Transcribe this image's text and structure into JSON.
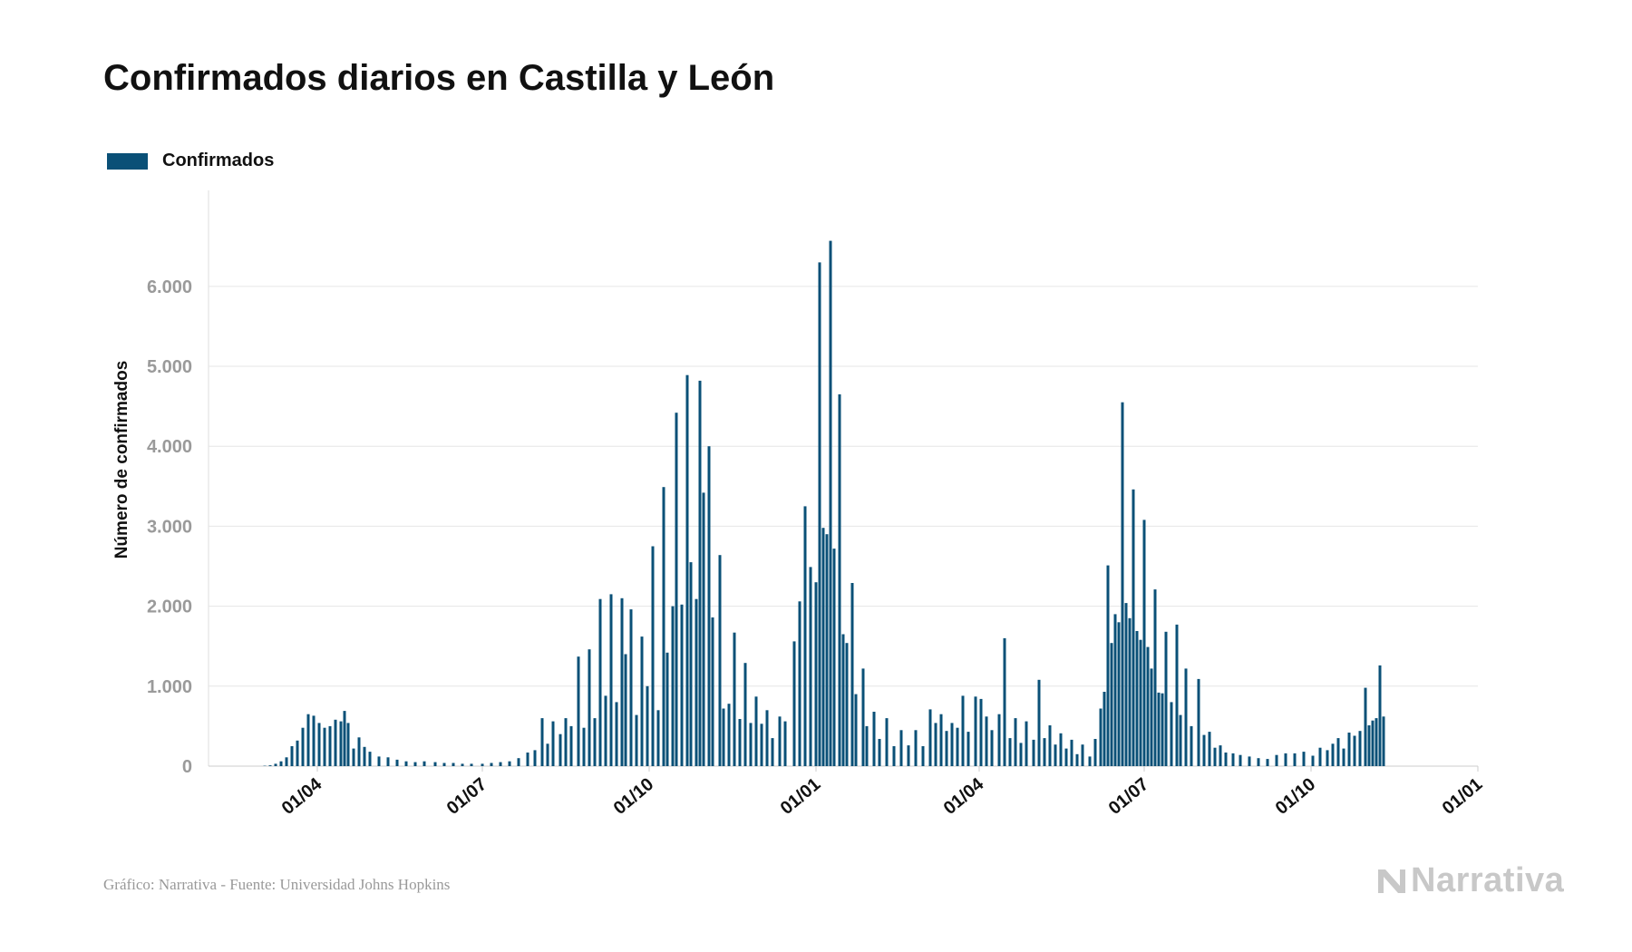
{
  "page": {
    "title": "Confirmados diarios en Castilla y León",
    "source": "Gráfico: Narrativa - Fuente: Universidad Johns Hopkins",
    "brand": "Narrativa"
  },
  "chart_data": {
    "type": "bar",
    "title": "Confirmados diarios en Castilla y León",
    "ylabel": "Número de confirmados",
    "xlabel": "",
    "ylim": [
      0,
      7200
    ],
    "grid": true,
    "legend": {
      "position": "top-left",
      "entries": [
        "Confirmados"
      ]
    },
    "color": "#0a5077",
    "y_ticks": [
      {
        "value": 0,
        "label": "0"
      },
      {
        "value": 1000,
        "label": "1.000"
      },
      {
        "value": 2000,
        "label": "2.000"
      },
      {
        "value": 3000,
        "label": "3.000"
      },
      {
        "value": 4000,
        "label": "4.000"
      },
      {
        "value": 5000,
        "label": "5.000"
      },
      {
        "value": 6000,
        "label": "6.000"
      }
    ],
    "x_range": [
      "2020-02-01",
      "2022-01-01"
    ],
    "x_ticks": [
      {
        "date": "2020-04-01",
        "label": "01/04"
      },
      {
        "date": "2020-07-01",
        "label": "01/07"
      },
      {
        "date": "2020-10-01",
        "label": "01/10"
      },
      {
        "date": "2021-01-01",
        "label": "01/01"
      },
      {
        "date": "2021-04-01",
        "label": "01/04"
      },
      {
        "date": "2021-07-01",
        "label": "01/07"
      },
      {
        "date": "2021-10-01",
        "label": "01/10"
      },
      {
        "date": "2022-01-01",
        "label": "01/01"
      }
    ],
    "series": [
      {
        "name": "Confirmados",
        "points": [
          [
            "2020-03-03",
            5
          ],
          [
            "2020-03-06",
            10
          ],
          [
            "2020-03-09",
            30
          ],
          [
            "2020-03-12",
            60
          ],
          [
            "2020-03-15",
            110
          ],
          [
            "2020-03-18",
            250
          ],
          [
            "2020-03-21",
            320
          ],
          [
            "2020-03-24",
            480
          ],
          [
            "2020-03-27",
            650
          ],
          [
            "2020-03-30",
            630
          ],
          [
            "2020-04-02",
            540
          ],
          [
            "2020-04-05",
            480
          ],
          [
            "2020-04-08",
            500
          ],
          [
            "2020-04-11",
            580
          ],
          [
            "2020-04-14",
            560
          ],
          [
            "2020-04-16",
            690
          ],
          [
            "2020-04-18",
            540
          ],
          [
            "2020-04-21",
            220
          ],
          [
            "2020-04-24",
            360
          ],
          [
            "2020-04-27",
            240
          ],
          [
            "2020-04-30",
            180
          ],
          [
            "2020-05-05",
            120
          ],
          [
            "2020-05-10",
            110
          ],
          [
            "2020-05-15",
            80
          ],
          [
            "2020-05-20",
            60
          ],
          [
            "2020-05-25",
            50
          ],
          [
            "2020-05-30",
            60
          ],
          [
            "2020-06-05",
            50
          ],
          [
            "2020-06-10",
            40
          ],
          [
            "2020-06-15",
            40
          ],
          [
            "2020-06-20",
            30
          ],
          [
            "2020-06-25",
            30
          ],
          [
            "2020-07-01",
            30
          ],
          [
            "2020-07-06",
            40
          ],
          [
            "2020-07-11",
            50
          ],
          [
            "2020-07-16",
            60
          ],
          [
            "2020-07-21",
            100
          ],
          [
            "2020-07-26",
            170
          ],
          [
            "2020-07-30",
            200
          ],
          [
            "2020-08-03",
            600
          ],
          [
            "2020-08-06",
            280
          ],
          [
            "2020-08-09",
            560
          ],
          [
            "2020-08-13",
            400
          ],
          [
            "2020-08-16",
            600
          ],
          [
            "2020-08-19",
            500
          ],
          [
            "2020-08-23",
            1370
          ],
          [
            "2020-08-26",
            480
          ],
          [
            "2020-08-29",
            1460
          ],
          [
            "2020-09-01",
            600
          ],
          [
            "2020-09-04",
            2090
          ],
          [
            "2020-09-07",
            880
          ],
          [
            "2020-09-10",
            2150
          ],
          [
            "2020-09-13",
            800
          ],
          [
            "2020-09-16",
            2100
          ],
          [
            "2020-09-18",
            1400
          ],
          [
            "2020-09-21",
            1960
          ],
          [
            "2020-09-24",
            640
          ],
          [
            "2020-09-27",
            1620
          ],
          [
            "2020-09-30",
            1000
          ],
          [
            "2020-10-03",
            2750
          ],
          [
            "2020-10-06",
            700
          ],
          [
            "2020-10-09",
            3490
          ],
          [
            "2020-10-11",
            1420
          ],
          [
            "2020-10-14",
            2000
          ],
          [
            "2020-10-16",
            4420
          ],
          [
            "2020-10-19",
            2020
          ],
          [
            "2020-10-22",
            4890
          ],
          [
            "2020-10-24",
            2550
          ],
          [
            "2020-10-27",
            2090
          ],
          [
            "2020-10-29",
            4820
          ],
          [
            "2020-10-31",
            3420
          ],
          [
            "2020-11-03",
            4000
          ],
          [
            "2020-11-05",
            1860
          ],
          [
            "2020-11-09",
            2640
          ],
          [
            "2020-11-11",
            720
          ],
          [
            "2020-11-14",
            780
          ],
          [
            "2020-11-17",
            1670
          ],
          [
            "2020-11-20",
            590
          ],
          [
            "2020-11-23",
            1290
          ],
          [
            "2020-11-26",
            540
          ],
          [
            "2020-11-29",
            870
          ],
          [
            "2020-12-02",
            530
          ],
          [
            "2020-12-05",
            700
          ],
          [
            "2020-12-08",
            350
          ],
          [
            "2020-12-12",
            620
          ],
          [
            "2020-12-15",
            560
          ],
          [
            "2020-12-20",
            1560
          ],
          [
            "2020-12-23",
            2060
          ],
          [
            "2020-12-26",
            3250
          ],
          [
            "2020-12-29",
            2490
          ],
          [
            "2021-01-01",
            2300
          ],
          [
            "2021-01-03",
            6300
          ],
          [
            "2021-01-05",
            2980
          ],
          [
            "2021-01-07",
            2900
          ],
          [
            "2021-01-09",
            6570
          ],
          [
            "2021-01-11",
            2720
          ],
          [
            "2021-01-14",
            4650
          ],
          [
            "2021-01-16",
            1650
          ],
          [
            "2021-01-18",
            1540
          ],
          [
            "2021-01-21",
            2290
          ],
          [
            "2021-01-23",
            900
          ],
          [
            "2021-01-27",
            1220
          ],
          [
            "2021-01-29",
            500
          ],
          [
            "2021-02-02",
            680
          ],
          [
            "2021-02-05",
            340
          ],
          [
            "2021-02-09",
            600
          ],
          [
            "2021-02-13",
            250
          ],
          [
            "2021-02-17",
            450
          ],
          [
            "2021-02-21",
            260
          ],
          [
            "2021-02-25",
            450
          ],
          [
            "2021-03-01",
            250
          ],
          [
            "2021-03-05",
            710
          ],
          [
            "2021-03-08",
            540
          ],
          [
            "2021-03-11",
            650
          ],
          [
            "2021-03-14",
            440
          ],
          [
            "2021-03-17",
            540
          ],
          [
            "2021-03-20",
            480
          ],
          [
            "2021-03-23",
            880
          ],
          [
            "2021-03-26",
            430
          ],
          [
            "2021-03-30",
            870
          ],
          [
            "2021-04-02",
            840
          ],
          [
            "2021-04-05",
            620
          ],
          [
            "2021-04-08",
            450
          ],
          [
            "2021-04-12",
            650
          ],
          [
            "2021-04-15",
            1600
          ],
          [
            "2021-04-18",
            350
          ],
          [
            "2021-04-21",
            600
          ],
          [
            "2021-04-24",
            290
          ],
          [
            "2021-04-27",
            560
          ],
          [
            "2021-05-01",
            330
          ],
          [
            "2021-05-04",
            1080
          ],
          [
            "2021-05-07",
            350
          ],
          [
            "2021-05-10",
            510
          ],
          [
            "2021-05-13",
            270
          ],
          [
            "2021-05-16",
            410
          ],
          [
            "2021-05-19",
            220
          ],
          [
            "2021-05-22",
            330
          ],
          [
            "2021-05-25",
            150
          ],
          [
            "2021-05-28",
            270
          ],
          [
            "2021-06-01",
            120
          ],
          [
            "2021-06-04",
            340
          ],
          [
            "2021-06-07",
            720
          ],
          [
            "2021-06-09",
            930
          ],
          [
            "2021-06-11",
            2510
          ],
          [
            "2021-06-13",
            1540
          ],
          [
            "2021-06-15",
            1900
          ],
          [
            "2021-06-17",
            1800
          ],
          [
            "2021-06-19",
            4550
          ],
          [
            "2021-06-21",
            2040
          ],
          [
            "2021-06-23",
            1850
          ],
          [
            "2021-06-25",
            3460
          ],
          [
            "2021-06-27",
            1690
          ],
          [
            "2021-06-29",
            1580
          ],
          [
            "2021-07-01",
            3080
          ],
          [
            "2021-07-03",
            1490
          ],
          [
            "2021-07-05",
            1220
          ],
          [
            "2021-07-07",
            2210
          ],
          [
            "2021-07-09",
            920
          ],
          [
            "2021-07-11",
            910
          ],
          [
            "2021-07-13",
            1680
          ],
          [
            "2021-07-16",
            800
          ],
          [
            "2021-07-19",
            1770
          ],
          [
            "2021-07-21",
            640
          ],
          [
            "2021-07-24",
            1220
          ],
          [
            "2021-07-27",
            500
          ],
          [
            "2021-07-31",
            1090
          ],
          [
            "2021-08-03",
            390
          ],
          [
            "2021-08-06",
            430
          ],
          [
            "2021-08-09",
            230
          ],
          [
            "2021-08-12",
            260
          ],
          [
            "2021-08-15",
            170
          ],
          [
            "2021-08-19",
            160
          ],
          [
            "2021-08-23",
            140
          ],
          [
            "2021-08-28",
            120
          ],
          [
            "2021-09-02",
            100
          ],
          [
            "2021-09-07",
            90
          ],
          [
            "2021-09-12",
            140
          ],
          [
            "2021-09-17",
            160
          ],
          [
            "2021-09-22",
            160
          ],
          [
            "2021-09-27",
            180
          ],
          [
            "2021-10-02",
            130
          ],
          [
            "2021-10-06",
            230
          ],
          [
            "2021-10-10",
            200
          ],
          [
            "2021-10-13",
            280
          ],
          [
            "2021-10-16",
            350
          ],
          [
            "2021-10-19",
            220
          ],
          [
            "2021-10-22",
            420
          ],
          [
            "2021-10-25",
            380
          ],
          [
            "2021-10-28",
            440
          ],
          [
            "2021-10-31",
            980
          ],
          [
            "2021-11-02",
            510
          ],
          [
            "2021-11-04",
            570
          ],
          [
            "2021-11-06",
            600
          ],
          [
            "2021-11-08",
            1260
          ],
          [
            "2021-11-10",
            620
          ]
        ]
      }
    ]
  }
}
